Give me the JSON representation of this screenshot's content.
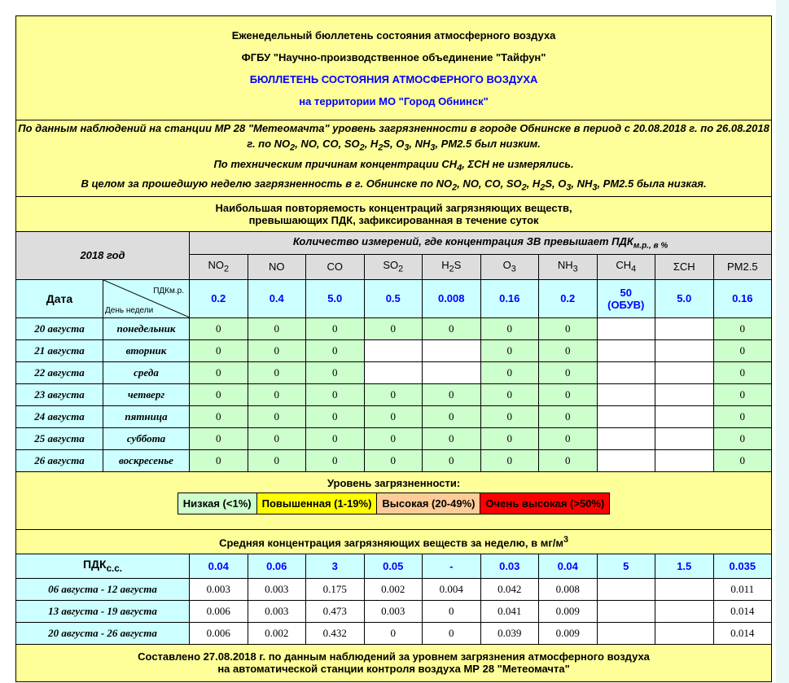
{
  "header": {
    "line1": "Еженедельный бюллетень состояния атмосферного воздуха",
    "line2": "ФГБУ \"Научно-производственное объединение \"Тайфун\"",
    "line3": "БЮЛЛЕТЕНЬ СОСТОЯНИЯ АТМОСФЕРНОГО ВОЗДУХА",
    "line4": "на территории МО \"Город Обнинск\""
  },
  "summary": {
    "p1a": "По данным наблюдений на станции МР 28 \"Метеомачта\" уровень загрязненности в городе Обнинске в период с 20.08.2018 г. по 26.08.2018 г. по NO",
    "p1b": ", NO, CO, SO",
    "p1c": ", H",
    "p1d": "S, O",
    "p1e": ", NH",
    "p1f": ", PM2.5 был низким.",
    "p2a": "По техническим причинам концентрации CH",
    "p2b": ", ΣCH не измерялись.",
    "p3a": "В целом за прошедшую неделю загрязненность в г. Обнинске по NO",
    "p3b": ", NO, CO, SO",
    "p3c": ", H",
    "p3d": "S, O",
    "p3e": ", NH",
    "p3f": ", PM2.5 была низкая."
  },
  "section1": {
    "title1": "Наибольшая повторяемость концентраций загрязняющих веществ,",
    "title2": "превышающих ПДК, зафиксированная в течение суток",
    "year": "2018 год",
    "count_header": "Количество измерений, где концентрация ЗВ превышает ПДК",
    "count_sub": "м.р., в %",
    "date_label": "Дата",
    "pdk_label": "ПДКм.р.",
    "weekday_label": "День недели"
  },
  "pollutants": [
    {
      "base": "NO",
      "sub": "2"
    },
    {
      "base": "NO",
      "sub": ""
    },
    {
      "base": "CO",
      "sub": ""
    },
    {
      "base": "SO",
      "sub": "2"
    },
    {
      "base": "H",
      "sub": "2",
      "tail": "S"
    },
    {
      "base": "O",
      "sub": "3"
    },
    {
      "base": "NH",
      "sub": "3"
    },
    {
      "base": "CH",
      "sub": "4"
    },
    {
      "base": "ΣCH",
      "sub": ""
    },
    {
      "base": "PM2.5",
      "sub": ""
    }
  ],
  "pdk_mr": [
    "0.2",
    "0.4",
    "5.0",
    "0.5",
    "0.008",
    "0.16",
    "0.2",
    "50\n(ОБУВ)",
    "5.0",
    "0.16"
  ],
  "days": [
    {
      "date": "20 августа",
      "weekday": "понедельник",
      "values": [
        "0",
        "0",
        "0",
        "0",
        "0",
        "0",
        "0",
        null,
        null,
        "0"
      ]
    },
    {
      "date": "21 августа",
      "weekday": "вторник",
      "values": [
        "0",
        "0",
        "0",
        null,
        null,
        "0",
        "0",
        null,
        null,
        "0"
      ]
    },
    {
      "date": "22 августа",
      "weekday": "среда",
      "values": [
        "0",
        "0",
        "0",
        null,
        null,
        "0",
        "0",
        null,
        null,
        "0"
      ]
    },
    {
      "date": "23 августа",
      "weekday": "четверг",
      "values": [
        "0",
        "0",
        "0",
        "0",
        "0",
        "0",
        "0",
        null,
        null,
        "0"
      ]
    },
    {
      "date": "24 августа",
      "weekday": "пятница",
      "values": [
        "0",
        "0",
        "0",
        "0",
        "0",
        "0",
        "0",
        null,
        null,
        "0"
      ]
    },
    {
      "date": "25 августа",
      "weekday": "суббота",
      "values": [
        "0",
        "0",
        "0",
        "0",
        "0",
        "0",
        "0",
        null,
        null,
        "0"
      ]
    },
    {
      "date": "26 августа",
      "weekday": "воскресенье",
      "values": [
        "0",
        "0",
        "0",
        "0",
        "0",
        "0",
        "0",
        null,
        null,
        "0"
      ]
    }
  ],
  "legend": {
    "title": "Уровень загрязненности:",
    "items": [
      {
        "label": "Низкая (<1%)",
        "color": "#ccffcc"
      },
      {
        "label": "Повышенная (1-19%)",
        "color": "#ffff00"
      },
      {
        "label": "Высокая (20-49%)",
        "color": "#ffcc99"
      },
      {
        "label": "Очень высокая (>50%)",
        "color": "#ff0000"
      }
    ]
  },
  "section2": {
    "title": "Средняя концентрация загрязняющих веществ за неделю, в мг/м",
    "title_sup": "3",
    "pdk_label": "ПДК",
    "pdk_sub": "с.с."
  },
  "pdk_ss": [
    "0.04",
    "0.06",
    "3",
    "0.05",
    "-",
    "0.03",
    "0.04",
    "5",
    "1.5",
    "0.035"
  ],
  "weeks": [
    {
      "period": "06 августа - 12 августа",
      "values": [
        "0.003",
        "0.003",
        "0.175",
        "0.002",
        "0.004",
        "0.042",
        "0.008",
        "",
        "",
        "0.011"
      ]
    },
    {
      "period": "13 августа - 19 августа",
      "values": [
        "0.006",
        "0.003",
        "0.473",
        "0.003",
        "0",
        "0.041",
        "0.009",
        "",
        "",
        "0.014"
      ]
    },
    {
      "period": "20 августа - 26 августа",
      "values": [
        "0.006",
        "0.002",
        "0.432",
        "0",
        "0",
        "0.039",
        "0.009",
        "",
        "",
        "0.014"
      ]
    }
  ],
  "footer": {
    "line1": "Составлено 27.08.2018 г. по данным наблюдений за уровнем загрязнения атмосферного воздуха",
    "line2": "на автоматической станции контроля воздуха МР 28 \"Метеомачта\""
  }
}
